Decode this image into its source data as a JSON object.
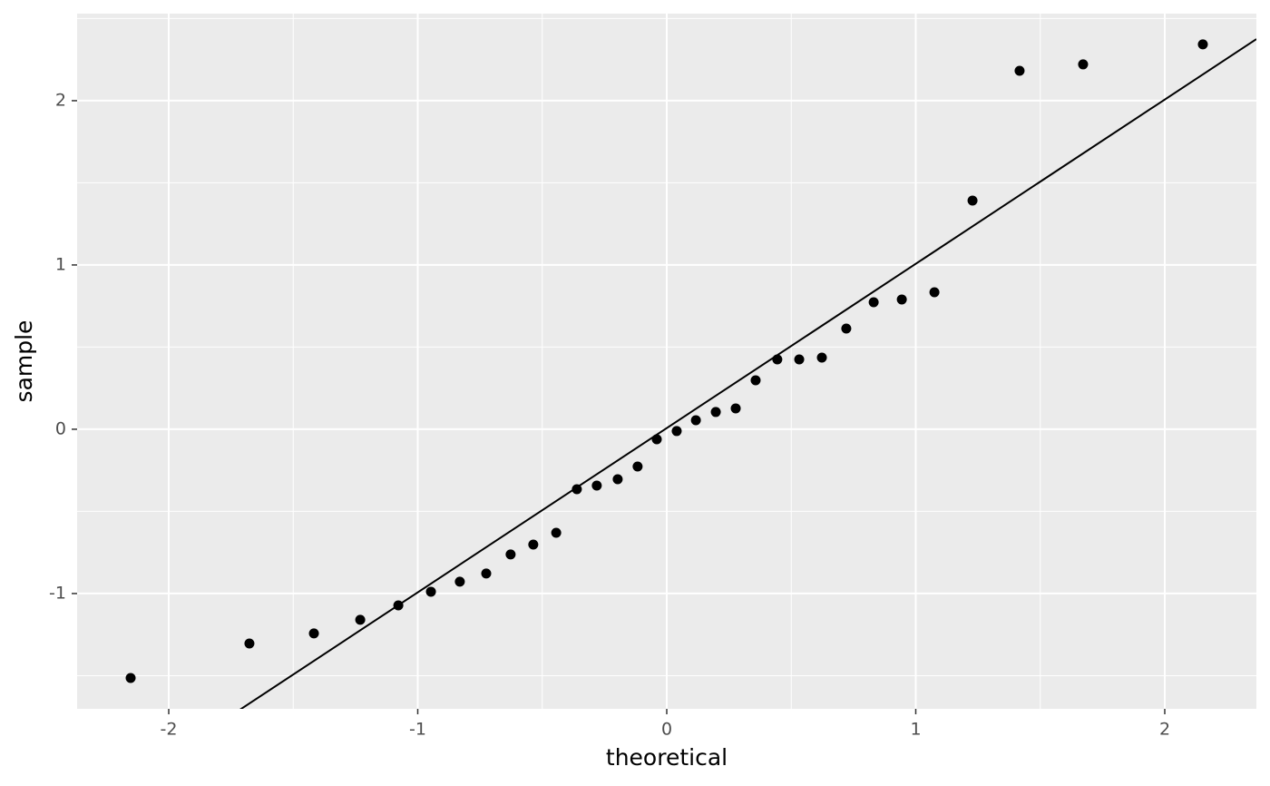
{
  "chart_data": {
    "type": "qq",
    "x_label": "theoretical",
    "y_label": "sample",
    "x": [
      -2.153,
      -1.676,
      -1.417,
      -1.231,
      -1.078,
      -0.947,
      -0.831,
      -0.725,
      -0.627,
      -0.536,
      -0.444,
      -0.361,
      -0.281,
      -0.197,
      -0.117,
      -0.04,
      0.04,
      0.117,
      0.197,
      0.277,
      0.357,
      0.444,
      0.532,
      0.623,
      0.721,
      0.831,
      0.944,
      1.075,
      1.228,
      1.417,
      1.672,
      2.153
    ],
    "values": [
      -1.514,
      -1.304,
      -1.243,
      -1.16,
      -1.072,
      -0.989,
      -0.928,
      -0.878,
      -0.762,
      -0.702,
      -0.63,
      -0.365,
      -0.343,
      -0.304,
      -0.227,
      -0.061,
      -0.011,
      0.055,
      0.105,
      0.127,
      0.298,
      0.425,
      0.425,
      0.436,
      0.613,
      0.773,
      0.79,
      0.834,
      1.392,
      2.182,
      2.221,
      2.343
    ],
    "color": "#000000",
    "line": {
      "slope": 1.0,
      "intercept": 0.007,
      "color": "#000000"
    },
    "xlim": [
      -2.368,
      2.368
    ],
    "ylim": [
      -1.702,
      2.53
    ],
    "xticks": [
      -2,
      -1,
      0,
      1,
      2
    ],
    "yticks": [
      -1,
      0,
      1,
      2
    ],
    "xminor": [
      -1.5,
      -0.5,
      0.5,
      1.5
    ],
    "yminor": [
      -1.5,
      -0.5,
      0.5,
      1.5,
      2.5
    ],
    "grid": true,
    "panel_color": "#ebebeb"
  }
}
